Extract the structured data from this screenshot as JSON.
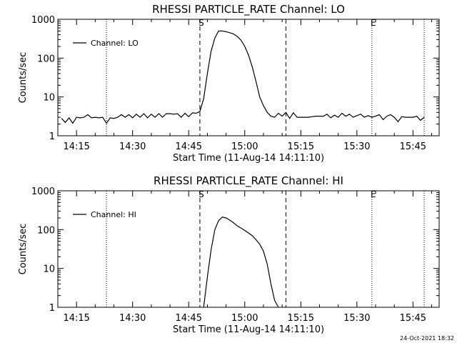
{
  "chart_data": [
    {
      "type": "line",
      "title": "RHESSI PARTICLE_RATE Channel: LO",
      "xlabel": "Start Time (11-Aug-14 14:11:10)",
      "ylabel": "Counts/sec",
      "yscale": "log",
      "ylim": [
        1,
        1000
      ],
      "xlim": [
        "14:10",
        "15:52"
      ],
      "xticks": [
        "14:15",
        "14:30",
        "14:45",
        "15:00",
        "15:15",
        "15:30",
        "15:45"
      ],
      "yticks": [
        "1",
        "10",
        "100",
        "1000"
      ],
      "legend": {
        "label": "Channel: LO",
        "position": "top-left"
      },
      "markers": [
        {
          "label": "S",
          "time": "14:48",
          "style": "dashed"
        },
        {
          "label": "",
          "time": "15:11",
          "style": "dashed"
        },
        {
          "label": "E",
          "time": "15:34",
          "style": "dotted"
        },
        {
          "label": "",
          "time": "14:23",
          "style": "dotted"
        },
        {
          "label": "",
          "time": "15:48",
          "style": "dotted"
        }
      ],
      "series": [
        {
          "name": "Channel: LO",
          "x": [
            "14:11",
            "14:12",
            "14:13",
            "14:14",
            "14:15",
            "14:16",
            "14:17",
            "14:18",
            "14:19",
            "14:20",
            "14:21",
            "14:22",
            "14:23",
            "14:24",
            "14:25",
            "14:26",
            "14:27",
            "14:28",
            "14:29",
            "14:30",
            "14:31",
            "14:32",
            "14:33",
            "14:34",
            "14:35",
            "14:36",
            "14:37",
            "14:38",
            "14:39",
            "14:40",
            "14:41",
            "14:42",
            "14:43",
            "14:44",
            "14:45",
            "14:46",
            "14:47",
            "14:48",
            "14:49",
            "14:50",
            "14:51",
            "14:52",
            "14:53",
            "14:54",
            "14:55",
            "14:56",
            "14:57",
            "14:58",
            "14:59",
            "15:00",
            "15:01",
            "15:02",
            "15:03",
            "15:04",
            "15:05",
            "15:06",
            "15:07",
            "15:08",
            "15:09",
            "15:10",
            "15:11",
            "15:12",
            "15:13",
            "15:14",
            "15:15",
            "15:16",
            "15:17",
            "15:18",
            "15:19",
            "15:20",
            "15:21",
            "15:22",
            "15:23",
            "15:24",
            "15:25",
            "15:26",
            "15:27",
            "15:28",
            "15:29",
            "15:30",
            "15:31",
            "15:32",
            "15:33",
            "15:34",
            "15:35",
            "15:36",
            "15:37",
            "15:38",
            "15:39",
            "15:40",
            "15:41",
            "15:42",
            "15:43",
            "15:44",
            "15:45",
            "15:46",
            "15:47",
            "15:48"
          ],
          "y": [
            2.8,
            2.2,
            2.9,
            2.1,
            3.0,
            2.9,
            3.0,
            3.5,
            2.9,
            3.0,
            2.9,
            3.0,
            2.1,
            2.9,
            2.8,
            3.0,
            3.5,
            3.0,
            3.5,
            2.9,
            3.6,
            3.0,
            3.7,
            2.9,
            3.6,
            3.0,
            3.7,
            3.0,
            3.7,
            3.7,
            3.6,
            3.7,
            3.0,
            3.8,
            3.1,
            3.9,
            3.8,
            4.2,
            9,
            40,
            150,
            330,
            500,
            500,
            480,
            450,
            420,
            360,
            290,
            200,
            120,
            60,
            25,
            10,
            6,
            4.0,
            3.2,
            3.0,
            3.8,
            3.2,
            4.0,
            2.8,
            3.9,
            3.0,
            3.0,
            3.0,
            3.0,
            3.1,
            3.2,
            3.2,
            3.2,
            3.6,
            2.9,
            3.4,
            3.0,
            3.8,
            3.2,
            3.6,
            3.0,
            3.3,
            3.6,
            3.0,
            3.3,
            3.0,
            3.2,
            3.5,
            2.6,
            3.2,
            3.5,
            3.0,
            2.3,
            3.1,
            3.0,
            3.0,
            3.0,
            3.2,
            2.5,
            3.0
          ]
        }
      ]
    },
    {
      "type": "line",
      "title": "RHESSI PARTICLE_RATE Channel: HI",
      "xlabel": "Start Time (11-Aug-14 14:11:10)",
      "ylabel": "Counts/sec",
      "yscale": "log",
      "ylim": [
        1,
        1000
      ],
      "xlim": [
        "14:10",
        "15:52"
      ],
      "xticks": [
        "14:15",
        "14:30",
        "14:45",
        "15:00",
        "15:15",
        "15:30",
        "15:45"
      ],
      "yticks": [
        "1",
        "10",
        "100",
        "1000"
      ],
      "legend": {
        "label": "Channel: HI",
        "position": "top-left"
      },
      "markers": [
        {
          "label": "S",
          "time": "14:48",
          "style": "dashed"
        },
        {
          "label": "",
          "time": "15:11",
          "style": "dashed"
        },
        {
          "label": "E",
          "time": "15:34",
          "style": "dotted"
        },
        {
          "label": "",
          "time": "14:23",
          "style": "dotted"
        },
        {
          "label": "",
          "time": "15:48",
          "style": "dotted"
        }
      ],
      "series": [
        {
          "name": "Channel: HI",
          "x": [
            "14:49",
            "14:50",
            "14:51",
            "14:52",
            "14:53",
            "14:54",
            "14:55",
            "14:56",
            "14:57",
            "14:58",
            "14:59",
            "15:00",
            "15:01",
            "15:02",
            "15:03",
            "15:04",
            "15:05",
            "15:06",
            "15:07",
            "15:08",
            "15:09"
          ],
          "y": [
            1,
            6,
            30,
            100,
            170,
            210,
            200,
            175,
            150,
            125,
            110,
            95,
            82,
            70,
            55,
            42,
            28,
            13,
            4,
            1.5,
            1
          ]
        }
      ]
    }
  ],
  "footer": {
    "timestamp": "24-Oct-2021 18:32"
  }
}
